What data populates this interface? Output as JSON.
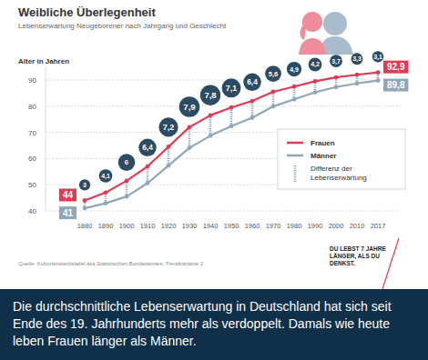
{
  "chart_data": {
    "type": "line",
    "title": "Weibliche Überlegenheit",
    "subtitle": "Lebenserwartung Neugeborener nach Jahrgang und Geschlecht",
    "y_label": "Alter in Jahren",
    "categories": [
      "1880",
      "1890",
      "1900",
      "1910",
      "1920",
      "1930",
      "1940",
      "1950",
      "1960",
      "1970",
      "1980",
      "1990",
      "2000",
      "2010",
      "2017"
    ],
    "series": [
      {
        "name": "Frauen",
        "color": "#e23a52",
        "marker": "circle",
        "values": [
          44,
          47,
          51.5,
          57,
          64.5,
          72,
          76.5,
          79.5,
          82,
          85.5,
          87.5,
          89.5,
          91,
          92,
          92.9
        ],
        "value_labels": [
          "44",
          null,
          null,
          null,
          null,
          null,
          null,
          null,
          null,
          null,
          null,
          null,
          null,
          null,
          "92,9"
        ]
      },
      {
        "name": "Männer",
        "color": "#8fa7b8",
        "marker": "circle",
        "values": [
          41,
          42.9,
          45.5,
          50.6,
          57.3,
          64.1,
          68.7,
          72.4,
          75.6,
          79.9,
          82.6,
          85.3,
          87.3,
          88.7,
          89.8
        ],
        "value_labels": [
          "41",
          null,
          null,
          null,
          null,
          null,
          null,
          null,
          null,
          null,
          null,
          null,
          null,
          null,
          "89,8"
        ]
      }
    ],
    "difference_name": "Differenz der Lebenserwartung",
    "differences": [
      3,
      4.1,
      6,
      6.4,
      7.2,
      7.9,
      7.8,
      7.1,
      6.4,
      5.6,
      4.9,
      4.2,
      3.7,
      3.3,
      3.1
    ],
    "difference_labels": [
      "3",
      "4,1",
      "6",
      "6,4",
      "7,2",
      "7,9",
      "7,8",
      "7,1",
      "6,4",
      "5,6",
      "4,9",
      "4,2",
      "3,7",
      "3,3",
      "3,1"
    ],
    "ylim": [
      40,
      95
    ],
    "yticks": [
      40,
      50,
      60,
      70,
      80,
      90
    ],
    "grid": true,
    "legend": "right",
    "source": "Quelle: Kohortensterbetafel des Statistischen Bundesamtes, Trendvariante 2",
    "annotation": "DU LEBST 7 JAHRE LÄNGER, ALS DU DENKST.",
    "caption": "Die durchschnittliche Lebenserwartung in Deutschland hat sich seit Ende des 19. Jahrhunderts mehr als verdoppelt. Damals wie heute leben Frauen länger als Männer."
  }
}
